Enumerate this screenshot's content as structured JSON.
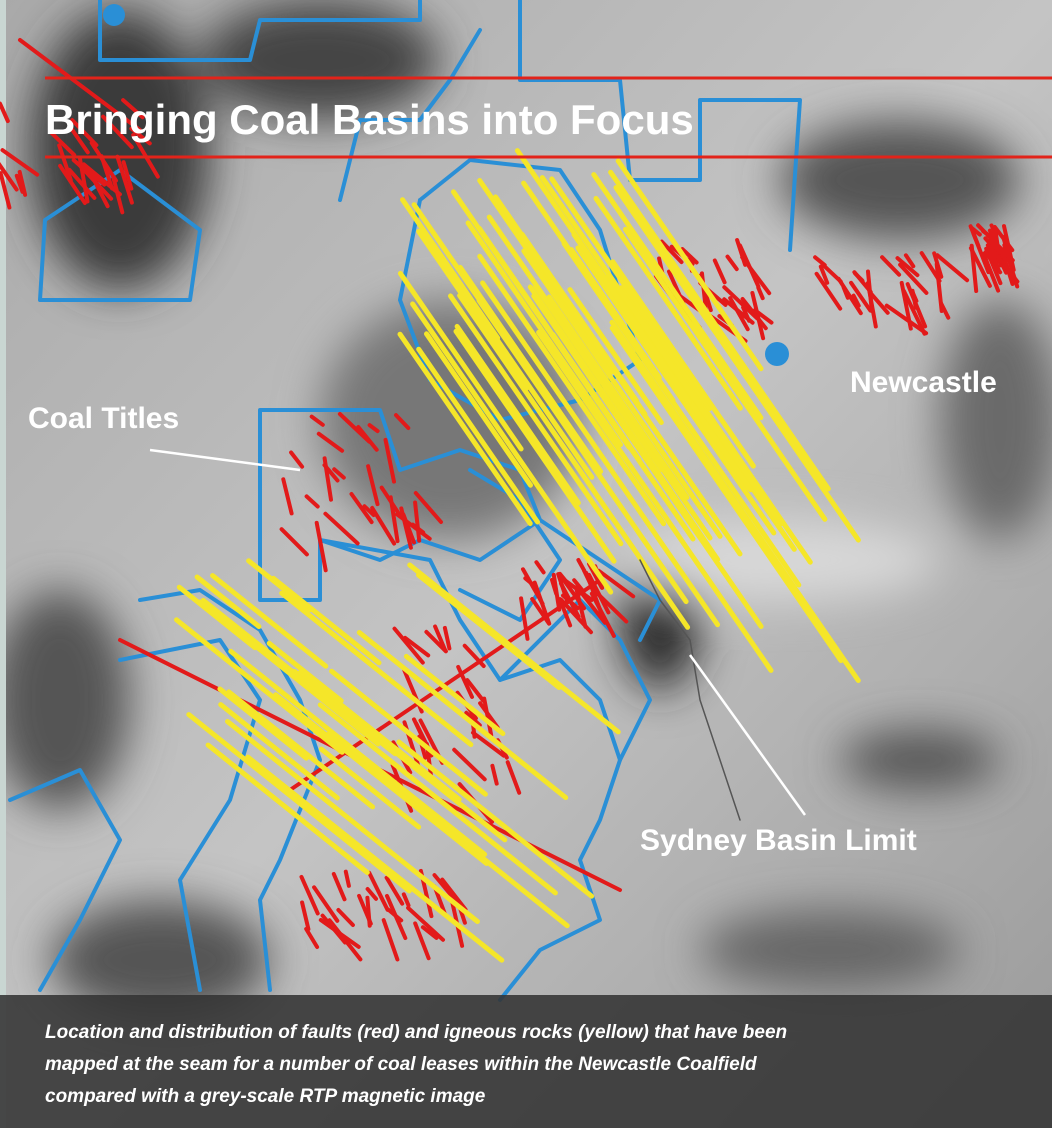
{
  "title": "Bringing Coal Basins into Focus",
  "labels": {
    "coal_titles": "Coal Titles",
    "newcastle": "Newcastle",
    "sydney_basin_limit": "Sydney Basin Limit"
  },
  "caption": {
    "lines": [
      "Location and distribution of faults (red) and igneous rocks (yellow) that have been",
      "mapped at the seam for a number of coal leases within the Newcastle Coalfield",
      "compared with a grey-scale RTP magnetic image"
    ]
  }
}
